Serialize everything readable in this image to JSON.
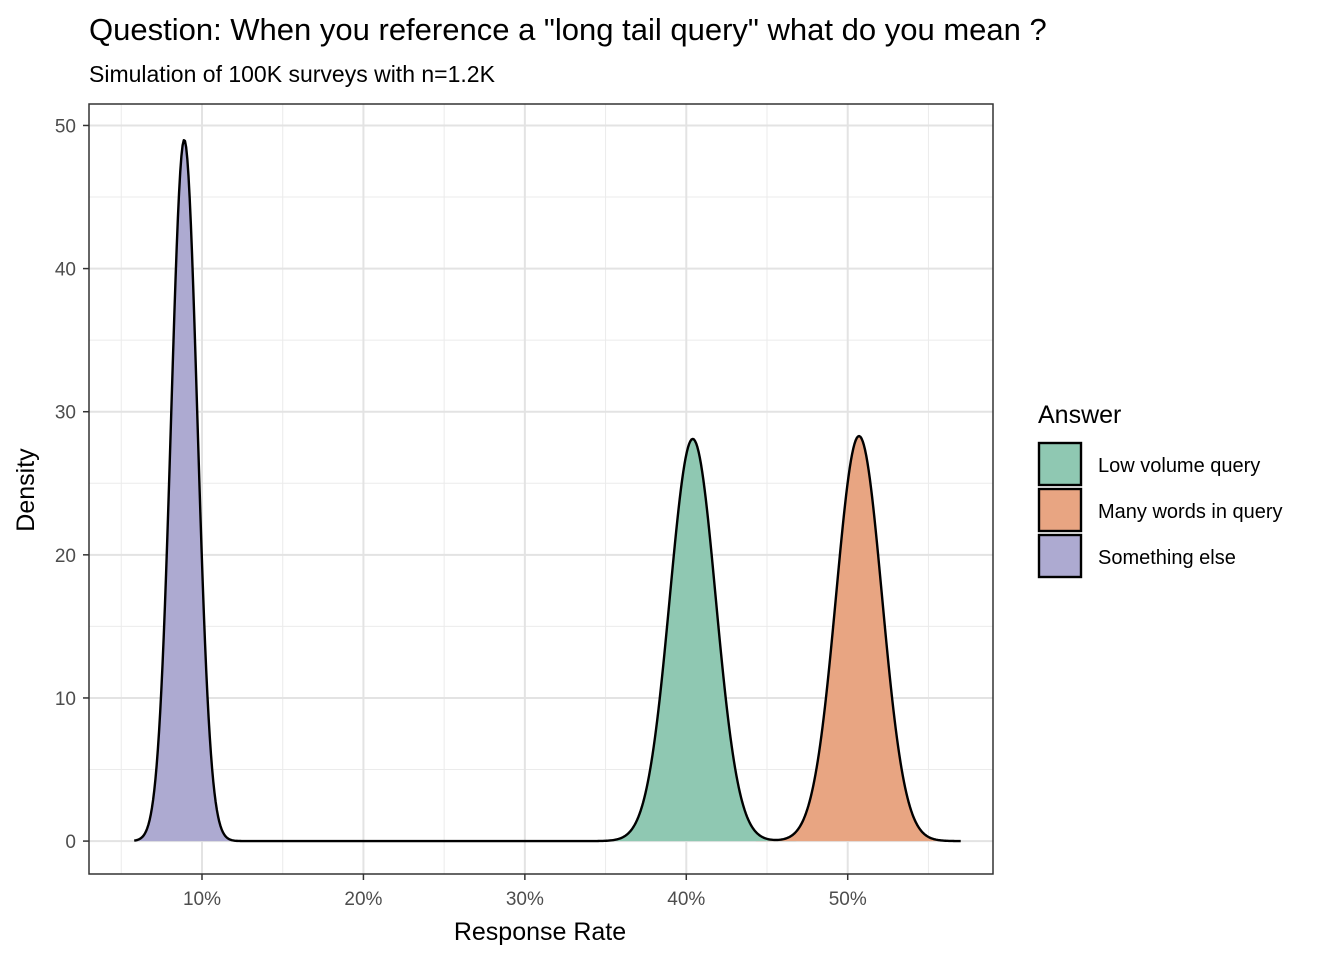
{
  "chart_data": {
    "type": "area",
    "title": "Question: When you reference a \"long tail query\" what do you mean ?",
    "subtitle": "Simulation of 100K surveys with n=1.2K",
    "xlabel": "Response Rate",
    "ylabel": "Density",
    "xlim": [
      0.03,
      0.59
    ],
    "ylim": [
      -2.3,
      51.5
    ],
    "x_ticks": [
      0.1,
      0.2,
      0.3,
      0.4,
      0.5
    ],
    "x_tick_labels": [
      "10%",
      "20%",
      "30%",
      "40%",
      "50%"
    ],
    "y_ticks": [
      0,
      10,
      20,
      30,
      40,
      50
    ],
    "y_tick_labels": [
      "0",
      "10",
      "20",
      "30",
      "40",
      "50"
    ],
    "grid": true,
    "legend": {
      "title": "Answer",
      "position": "right"
    },
    "x_range": [
      0.058,
      0.57
    ],
    "series": [
      {
        "name": "Low volume query",
        "color": "#8fc8b2",
        "mean": 0.404,
        "sd": 0.0142,
        "peak": 28.1
      },
      {
        "name": "Many words in query",
        "color": "#e8a582",
        "mean": 0.507,
        "sd": 0.0142,
        "peak": 28.3
      },
      {
        "name": "Something else",
        "color": "#adaad1",
        "mean": 0.089,
        "sd": 0.0081,
        "peak": 49.0
      }
    ]
  }
}
